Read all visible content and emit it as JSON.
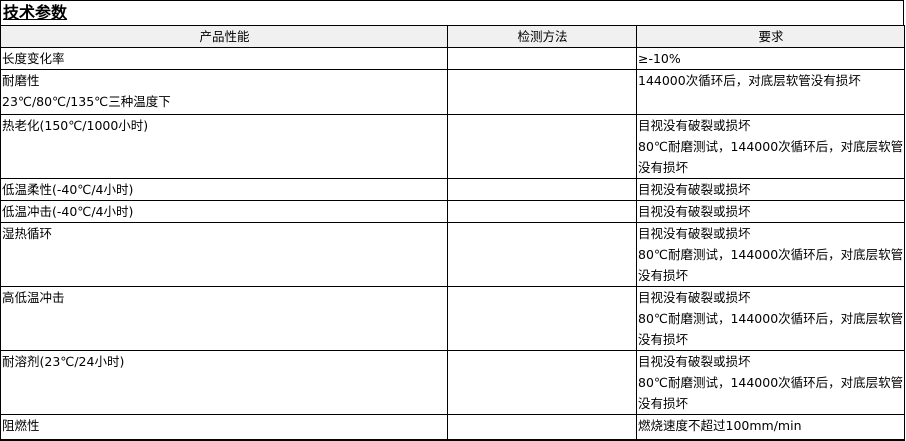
{
  "title": "技术参数",
  "headers": [
    "产品性能",
    "检测方法",
    "要求"
  ],
  "rows": [
    {
      "property": [
        "长度变化率"
      ],
      "method": "",
      "requirement": [
        "≥-10%"
      ]
    },
    {
      "property": [
        "耐磨性",
        "23℃/80℃/135℃三种温度下"
      ],
      "method": "",
      "requirement": [
        "144000次循环后，对底层软管没有损坏"
      ]
    },
    {
      "property": [
        "热老化(150℃/1000小时)"
      ],
      "method": "",
      "requirement": [
        "目视没有破裂或损坏",
        "80℃耐磨测试，144000次循环后，对底层软管",
        "没有损坏"
      ]
    },
    {
      "property": [
        "低温柔性(-40℃/4小时)"
      ],
      "method": "",
      "requirement": [
        "目视没有破裂或损坏"
      ]
    },
    {
      "property": [
        "低温冲击(-40℃/4小时)"
      ],
      "method": "",
      "requirement": [
        "目视没有破裂或损坏"
      ]
    },
    {
      "property": [
        "湿热循环"
      ],
      "method": "",
      "requirement": [
        "目视没有破裂或损坏",
        "80℃耐磨测试，144000次循环后，对底层软管",
        "没有损坏"
      ]
    },
    {
      "property": [
        "高低温冲击"
      ],
      "method": "",
      "requirement": [
        "目视没有破裂或损坏",
        "80℃耐磨测试，144000次循环后，对底层软管",
        "没有损坏"
      ]
    },
    {
      "property": [
        "耐溶剂(23℃/24小时)"
      ],
      "method": "",
      "requirement": [
        "目视没有破裂或损坏",
        "80℃耐磨测试，144000次循环后，对底层软管",
        "没有损坏"
      ]
    },
    {
      "property": [
        "阻燃性"
      ],
      "method": "",
      "requirement": [
        "燃烧速度不超过100mm/min"
      ]
    }
  ]
}
